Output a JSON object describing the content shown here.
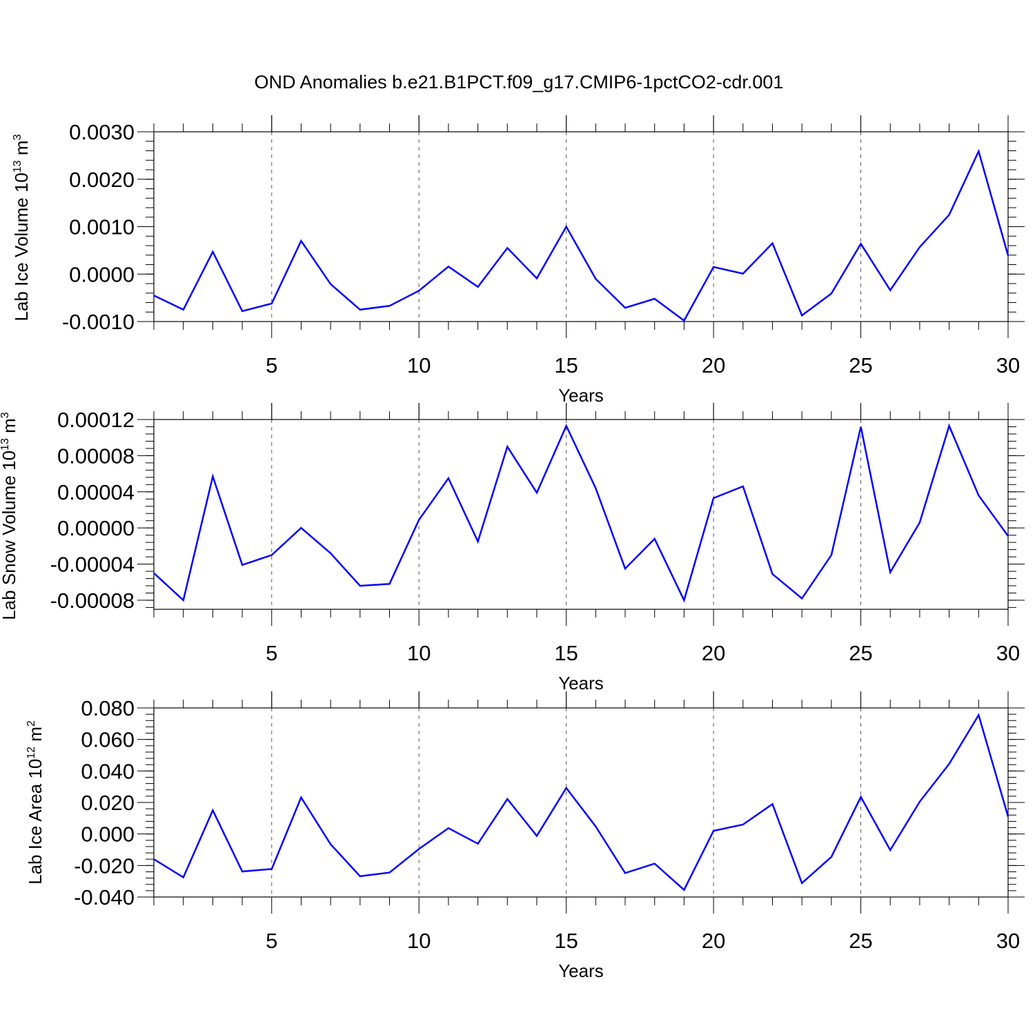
{
  "title": "OND Anomalies b.e21.B1PCT.f09_g17.CMIP6-1pctCO2-cdr.001",
  "line_color": "#0000ff",
  "chart_data": [
    {
      "type": "line",
      "ylabel": "Lab Ice Volume 10",
      "ylabel_sup1": "13",
      "ylabel_mid": " m",
      "ylabel_sup2": "3",
      "xlabel": "Years",
      "xlim": [
        1,
        30
      ],
      "ylim": [
        -0.001,
        0.003
      ],
      "xticks": [
        5,
        10,
        15,
        20,
        25,
        30
      ],
      "xtick_labels": [
        "5",
        "10",
        "15",
        "20",
        "25",
        "30"
      ],
      "yticks": [
        -0.001,
        0.0,
        0.001,
        0.002,
        0.003
      ],
      "ytick_labels": [
        "-0.0010",
        "0.0000",
        "0.0010",
        "0.0020",
        "0.0030"
      ],
      "grid": "dashed vertical at x ticks",
      "series": [
        {
          "x": [
            1,
            2,
            3,
            4,
            5,
            6,
            7,
            8,
            9,
            10,
            11,
            12,
            13,
            14,
            15,
            16,
            17,
            18,
            19,
            20,
            21,
            22,
            23,
            24,
            25,
            26,
            27,
            28,
            29,
            30
          ],
          "values": [
            -0.00045,
            -0.00075,
            0.00047,
            -0.00078,
            -0.00062,
            0.0007,
            -0.00021,
            -0.00075,
            -0.00067,
            -0.00035,
            0.00016,
            -0.00027,
            0.00055,
            -9e-05,
            0.001,
            -0.0001,
            -0.00071,
            -0.00052,
            -0.00098,
            0.00015,
            1e-05,
            0.00065,
            -0.00087,
            -0.00041,
            0.00064,
            -0.00034,
            0.00057,
            0.00125,
            0.00259,
            0.00039
          ]
        }
      ]
    },
    {
      "type": "line",
      "ylabel": "Lab Snow Volume 10",
      "ylabel_sup1": "13",
      "ylabel_mid": " m",
      "ylabel_sup2": "3",
      "xlabel": "Years",
      "xlim": [
        1,
        30
      ],
      "ylim": [
        -9e-05,
        0.00012
      ],
      "xticks": [
        5,
        10,
        15,
        20,
        25,
        30
      ],
      "xtick_labels": [
        "5",
        "10",
        "15",
        "20",
        "25",
        "30"
      ],
      "yticks": [
        -8e-05,
        -4e-05,
        0.0,
        4e-05,
        8e-05,
        0.00012
      ],
      "ytick_labels": [
        "-0.00008",
        "-0.00004",
        "0.00000",
        "0.00004",
        "0.00008",
        "0.00012"
      ],
      "grid": "dashed vertical at x ticks",
      "series": [
        {
          "x": [
            1,
            2,
            3,
            4,
            5,
            6,
            7,
            8,
            9,
            10,
            11,
            12,
            13,
            14,
            15,
            16,
            17,
            18,
            19,
            20,
            21,
            22,
            23,
            24,
            25,
            26,
            27,
            28,
            29,
            30
          ],
          "values": [
            -5e-05,
            -8e-05,
            5.7e-05,
            -4.1e-05,
            -3e-05,
            0.0,
            -2.8e-05,
            -6.4e-05,
            -6.2e-05,
            9e-06,
            5.5e-05,
            -1.5e-05,
            9e-05,
            3.9e-05,
            0.000113,
            4.4e-05,
            -4.5e-05,
            -1.2e-05,
            -8e-05,
            3.3e-05,
            4.6e-05,
            -5.1e-05,
            -7.8e-05,
            -3e-05,
            0.000112,
            -4.9e-05,
            6e-06,
            0.000113,
            3.6e-05,
            -9e-06
          ]
        }
      ]
    },
    {
      "type": "line",
      "ylabel": "Lab Ice Area 10",
      "ylabel_sup1": "12",
      "ylabel_mid": " m",
      "ylabel_sup2": "2",
      "xlabel": "Years",
      "xlim": [
        1,
        30
      ],
      "ylim": [
        -0.04,
        0.08
      ],
      "xticks": [
        5,
        10,
        15,
        20,
        25,
        30
      ],
      "xtick_labels": [
        "5",
        "10",
        "15",
        "20",
        "25",
        "30"
      ],
      "yticks": [
        -0.04,
        -0.02,
        0.0,
        0.02,
        0.04,
        0.06,
        0.08
      ],
      "ytick_labels": [
        "-0.040",
        "-0.020",
        "0.000",
        "0.020",
        "0.040",
        "0.060",
        "0.080"
      ],
      "grid": "dashed vertical at x ticks",
      "series": [
        {
          "x": [
            1,
            2,
            3,
            4,
            5,
            6,
            7,
            8,
            9,
            10,
            11,
            12,
            13,
            14,
            15,
            16,
            17,
            18,
            19,
            20,
            21,
            22,
            23,
            24,
            25,
            26,
            27,
            28,
            29,
            30
          ],
          "values": [
            -0.016,
            -0.0275,
            0.015,
            -0.0238,
            -0.0222,
            0.0232,
            -0.0065,
            -0.0268,
            -0.0245,
            -0.0095,
            0.0037,
            -0.0062,
            0.0222,
            -0.0012,
            0.0292,
            0.0048,
            -0.0248,
            -0.0188,
            -0.0355,
            0.002,
            0.006,
            0.019,
            -0.0312,
            -0.0145,
            0.0235,
            -0.0102,
            0.0205,
            0.0445,
            0.0755,
            0.011
          ]
        }
      ]
    }
  ]
}
